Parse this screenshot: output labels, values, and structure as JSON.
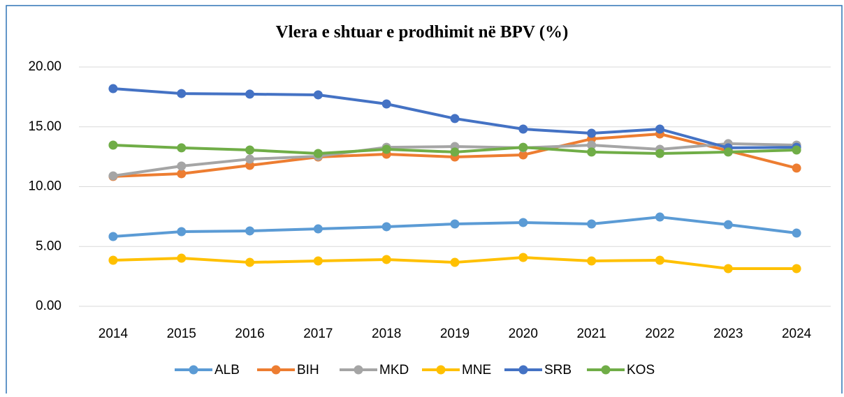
{
  "chart_data": {
    "type": "line",
    "title": "Vlera e shtuar e prodhimit në BPV (%)",
    "categories": [
      "2014",
      "2015",
      "2016",
      "2017",
      "2018",
      "2019",
      "2020",
      "2021",
      "2022",
      "2023",
      "2024"
    ],
    "series": [
      {
        "name": "ALB",
        "color": "#5b9bd5",
        "values": [
          5.83,
          6.24,
          6.3,
          6.47,
          6.65,
          6.88,
          7.0,
          6.88,
          7.46,
          6.82,
          6.12
        ]
      },
      {
        "name": "BIH",
        "color": "#ed7d31",
        "values": [
          10.85,
          11.08,
          11.78,
          12.48,
          12.71,
          12.48,
          12.65,
          13.99,
          14.4,
          13.0,
          11.55
        ]
      },
      {
        "name": "MKD",
        "color": "#a5a5a5",
        "values": [
          10.9,
          11.72,
          12.3,
          12.54,
          13.29,
          13.35,
          13.24,
          13.47,
          13.12,
          13.59,
          13.47
        ]
      },
      {
        "name": "MNE",
        "color": "#ffc000",
        "values": [
          3.85,
          4.02,
          3.67,
          3.79,
          3.91,
          3.67,
          4.08,
          3.79,
          3.85,
          3.15,
          3.15
        ]
      },
      {
        "name": "SRB",
        "color": "#4472c4",
        "values": [
          18.19,
          17.78,
          17.73,
          17.67,
          16.91,
          15.69,
          14.81,
          14.46,
          14.81,
          13.24,
          13.29
        ]
      },
      {
        "name": "KOS",
        "color": "#70ad47",
        "values": [
          13.47,
          13.24,
          13.06,
          12.77,
          13.12,
          12.89,
          13.29,
          12.89,
          12.77,
          12.89,
          13.06
        ]
      }
    ],
    "ylim": [
      0,
      20
    ],
    "yticks": [
      {
        "value": 0,
        "label": "0.00"
      },
      {
        "value": 5,
        "label": "5.00"
      },
      {
        "value": 10,
        "label": "10.00"
      },
      {
        "value": 15,
        "label": "15.00"
      },
      {
        "value": 20,
        "label": "20.00"
      }
    ],
    "grid": true,
    "legend": "bottom"
  }
}
